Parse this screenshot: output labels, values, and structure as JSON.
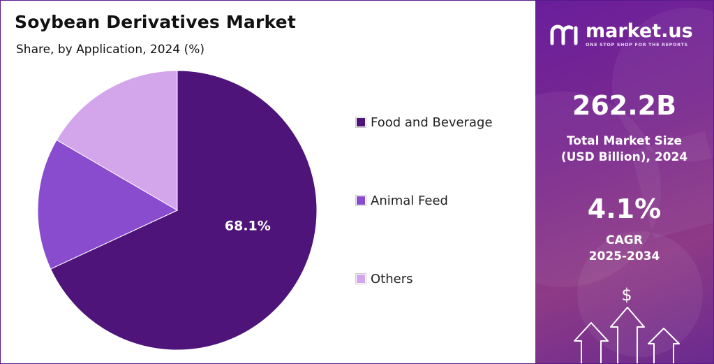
{
  "header": {
    "title": "Soybean Derivatives Market",
    "subtitle": "Share, by Application, 2024 (%)"
  },
  "chart_data": {
    "type": "pie",
    "categories": [
      "Food and Beverage",
      "Animal Feed",
      "Others"
    ],
    "values": [
      68.1,
      15.3,
      16.6
    ],
    "colors": [
      "#4e1479",
      "#8a4cce",
      "#d3a6ec"
    ],
    "data_labels": [
      "68.1%",
      "",
      ""
    ],
    "legend_position": "right"
  },
  "sidebar": {
    "brand_name": "market.us",
    "brand_tagline": "ONE STOP SHOP FOR THE REPORTS",
    "market_size_value": "262.2B",
    "market_size_label_1": "Total Market Size",
    "market_size_label_2": "(USD Billion), 2024",
    "cagr_value": "4.1%",
    "cagr_label_1": "CAGR",
    "cagr_label_2": "2025-2034",
    "dollar_symbol": "$"
  },
  "colors": {
    "accent": "#5b1a8a",
    "side_panel": "#7b2a8e"
  },
  "icons": [
    "market-us-logo-icon",
    "dollar-icon",
    "arrow-up-icon"
  ]
}
